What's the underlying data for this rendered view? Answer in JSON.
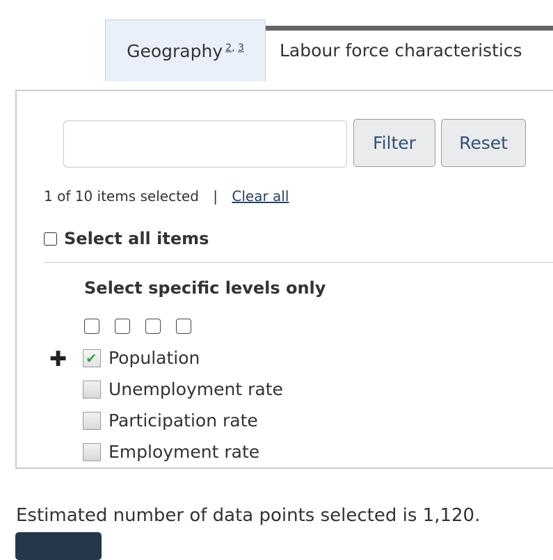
{
  "tabs": {
    "active": {
      "label": "Geography",
      "notes": [
        "2",
        "3"
      ]
    },
    "next": {
      "label": "Labour force characteristics"
    }
  },
  "filter": {
    "input_value": "",
    "filter_label": "Filter",
    "reset_label": "Reset"
  },
  "selection": {
    "summary": "1 of 10 items selected",
    "separator": "|",
    "clear_all": "Clear all"
  },
  "select_all": {
    "label": "Select all items",
    "checked": false
  },
  "levels": {
    "heading": "Select specific levels only",
    "count": 4
  },
  "items": [
    {
      "label": "Population",
      "checked": true,
      "expandable": true
    },
    {
      "label": "Unemployment rate",
      "checked": false
    },
    {
      "label": "Participation rate",
      "checked": false
    },
    {
      "label": "Employment rate",
      "checked": false
    }
  ],
  "estimate": "Estimated number of data points selected is 1,120.",
  "colors": {
    "link": "#284162",
    "button_text": "#335075",
    "tab_active_bg": "#e9f0f9",
    "submit_bg": "#26374a",
    "check": "#3aa84a"
  }
}
